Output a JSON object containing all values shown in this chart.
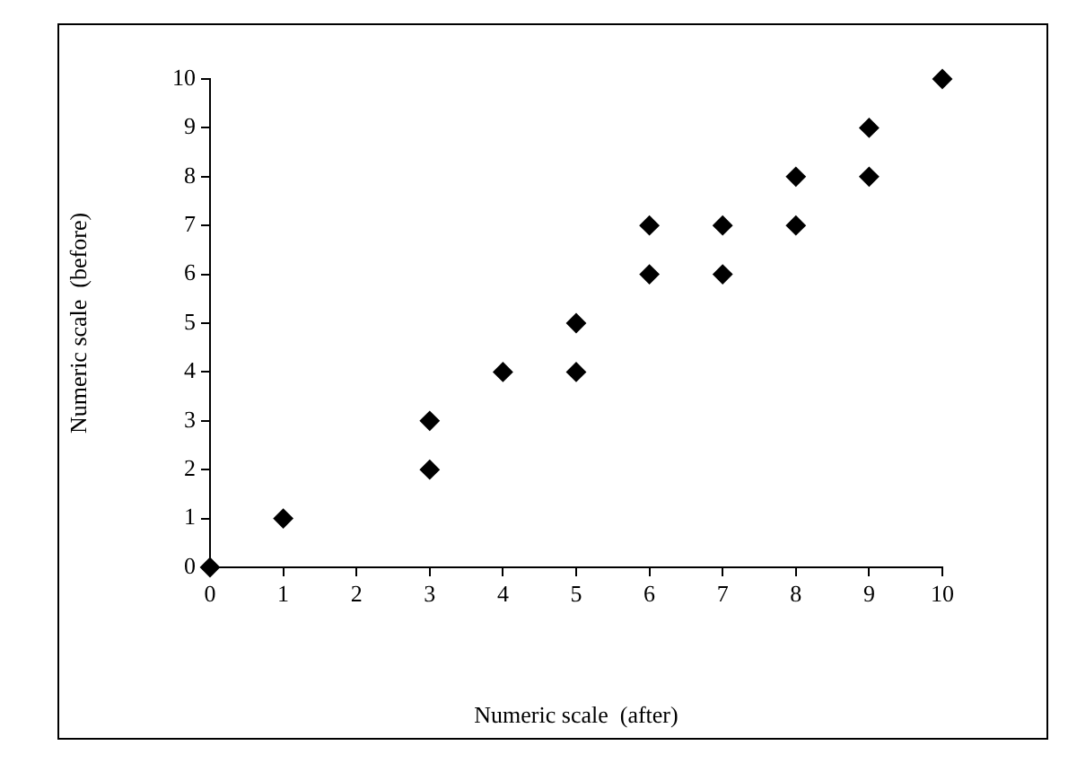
{
  "chart_data": {
    "type": "scatter",
    "xlabel": "Numeric scale  (after)",
    "ylabel": "Numeric scale  (before)",
    "x": [
      0,
      1,
      3,
      3,
      4,
      5,
      5,
      6,
      6,
      7,
      7,
      8,
      8,
      9,
      9,
      10
    ],
    "values": [
      0,
      1,
      3,
      2,
      4,
      5,
      4,
      7,
      6,
      7,
      6,
      8,
      7,
      9,
      8,
      10
    ],
    "color": "#000000",
    "marker": "diamond",
    "xlim": [
      0,
      10
    ],
    "xticks": [
      0,
      1,
      2,
      3,
      4,
      5,
      6,
      7,
      8,
      9,
      10
    ],
    "ylim": [
      0,
      10
    ],
    "yticks": [
      0,
      1,
      2,
      3,
      4,
      5,
      6,
      7,
      8,
      9,
      10
    ],
    "grid": false,
    "legend": false
  }
}
